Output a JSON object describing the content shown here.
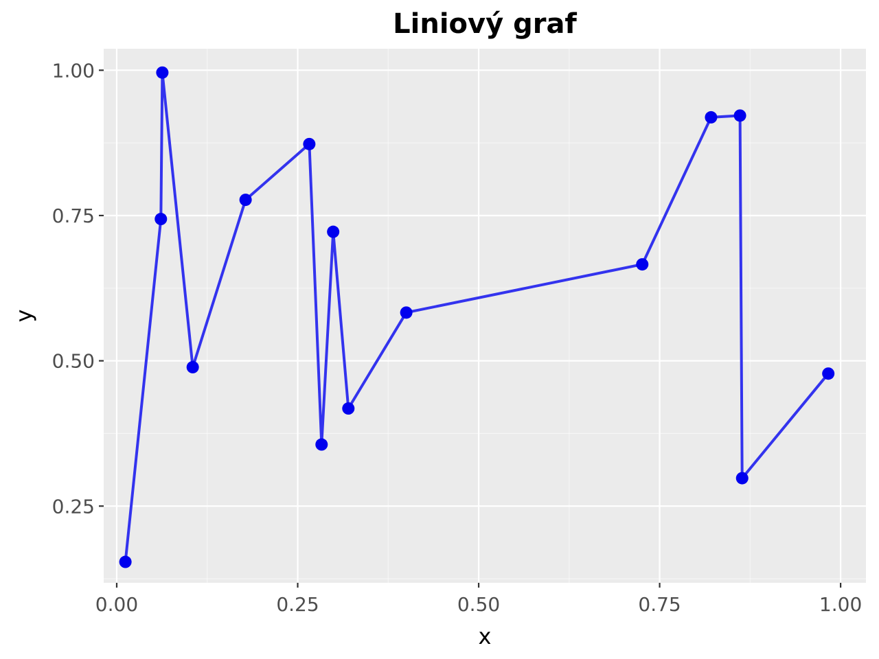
{
  "chart_data": {
    "type": "line",
    "title": "Liniový graf",
    "xlabel": "x",
    "ylabel": "y",
    "xlim": [
      -0.018,
      1.035
    ],
    "ylim": [
      0.118,
      1.037
    ],
    "x_ticks": [
      0.0,
      0.25,
      0.5,
      0.75,
      1.0
    ],
    "x_tick_labels": [
      "0.00",
      "0.25",
      "0.50",
      "0.75",
      "1.00"
    ],
    "y_ticks": [
      0.25,
      0.5,
      0.75,
      1.0
    ],
    "y_tick_labels": [
      "0.25",
      "0.50",
      "0.75",
      "1.00"
    ],
    "grid": true,
    "legend": "none",
    "colors": {
      "line": "#3333ee",
      "points": "#0000ee",
      "panel": "#ebebeb",
      "grid": "#ffffff"
    },
    "series": [
      {
        "x": [
          0.012,
          0.061,
          0.063,
          0.105,
          0.178,
          0.266,
          0.283,
          0.299,
          0.32,
          0.4,
          0.726,
          0.821,
          0.861,
          0.864,
          0.983
        ],
        "y": [
          0.154,
          0.744,
          0.996,
          0.489,
          0.777,
          0.873,
          0.356,
          0.722,
          0.418,
          0.583,
          0.666,
          0.919,
          0.922,
          0.298,
          0.478
        ]
      }
    ]
  }
}
